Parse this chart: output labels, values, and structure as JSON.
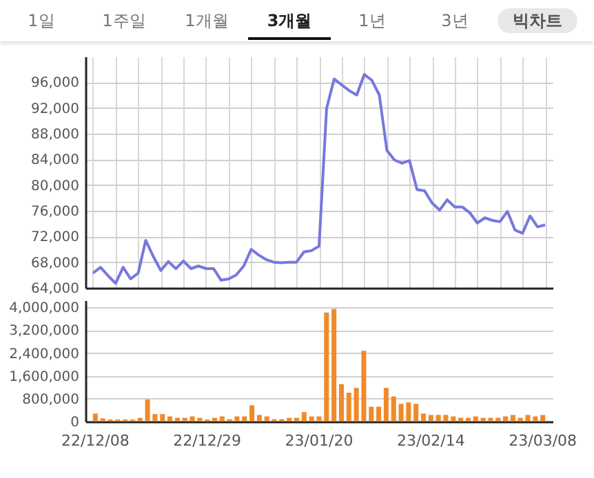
{
  "chart_data": [
    {
      "type": "line",
      "annotations": [
        "1일",
        "1주일",
        "1개월",
        "3개월",
        "1년",
        "3년",
        "빅차트"
      ],
      "categories": [
        null,
        null,
        null,
        null,
        null,
        null,
        null,
        null,
        null,
        null,
        null,
        null,
        null,
        null,
        null,
        null,
        null,
        null,
        null,
        null,
        null,
        null,
        null,
        null,
        null,
        null,
        null,
        null,
        null,
        null,
        null,
        null,
        null,
        null,
        null,
        null,
        null,
        null,
        null,
        null,
        null,
        null,
        null,
        null,
        null,
        null,
        null,
        null,
        null,
        null,
        null,
        null,
        null,
        null,
        null,
        null,
        null,
        null,
        null,
        null,
        null
      ],
      "series": [
        {
          "color": "#7777dd",
          "values": [
            66300,
            67200,
            65900,
            64700,
            67200,
            65400,
            66300,
            71400,
            68900,
            66700,
            68100,
            67000,
            68200,
            67000,
            67400,
            67000,
            67000,
            65200,
            65400,
            66000,
            67400,
            70000,
            69100,
            68400,
            68000,
            67900,
            68000,
            68000,
            69600,
            69800,
            70500,
            91900,
            96500,
            95600,
            94700,
            94000,
            97200,
            96300,
            94000,
            85400,
            83900,
            83400,
            83800,
            79300,
            79100,
            77200,
            76100,
            77700,
            76600,
            76600,
            75700,
            74100,
            74900,
            74500,
            74300,
            75900,
            73000,
            72500,
            75200,
            73500,
            73800
          ]
        }
      ],
      "ylim": [
        64000,
        100000
      ],
      "yticks": [
        {
          "value": 64000,
          "label": "64,000"
        },
        {
          "value": 68000,
          "label": "68,000"
        },
        {
          "value": 72000,
          "label": "72,000"
        },
        {
          "value": 76000,
          "label": "76,000"
        },
        {
          "value": 80000,
          "label": "80,000"
        },
        {
          "value": 84000,
          "label": "84,000"
        },
        {
          "value": 88000,
          "label": "88,000"
        },
        {
          "value": 92000,
          "label": "92,000"
        },
        {
          "value": 96000,
          "label": "96,000"
        }
      ],
      "grid": true,
      "tick_labels": "y"
    },
    {
      "type": "bar",
      "categories": [
        "22/12/08",
        null,
        null,
        null,
        null,
        null,
        null,
        null,
        null,
        null,
        null,
        null,
        null,
        null,
        null,
        "22/12/29",
        null,
        null,
        null,
        null,
        null,
        null,
        null,
        null,
        null,
        null,
        null,
        null,
        null,
        null,
        "23/01/20",
        null,
        null,
        null,
        null,
        null,
        null,
        null,
        null,
        null,
        null,
        null,
        null,
        null,
        null,
        "23/02/14",
        null,
        null,
        null,
        null,
        null,
        null,
        null,
        null,
        null,
        null,
        null,
        null,
        null,
        null,
        "23/03/08"
      ],
      "series": [
        {
          "color": "#ef8a2b",
          "values": [
            280000,
            110000,
            70000,
            70000,
            70000,
            70000,
            130000,
            770000,
            260000,
            260000,
            180000,
            130000,
            130000,
            180000,
            130000,
            70000,
            130000,
            180000,
            80000,
            180000,
            180000,
            570000,
            230000,
            180000,
            80000,
            80000,
            130000,
            130000,
            330000,
            180000,
            180000,
            3820000,
            3950000,
            1310000,
            1010000,
            1180000,
            2480000,
            520000,
            520000,
            1180000,
            880000,
            620000,
            670000,
            620000,
            280000,
            230000,
            230000,
            230000,
            180000,
            130000,
            130000,
            180000,
            130000,
            130000,
            130000,
            180000,
            230000,
            130000,
            230000,
            180000,
            230000
          ]
        }
      ],
      "ylim": [
        0,
        4250000
      ],
      "yticks": [
        0,
        {
          "value": 800000,
          "label": "800,000"
        },
        {
          "value": 1600000,
          "label": "1,600,000"
        },
        {
          "value": 2400000,
          "label": "2,400,000"
        },
        {
          "value": 3200000,
          "label": "3,200,000"
        },
        {
          "value": 4000000,
          "label": "4,000,000"
        }
      ],
      "grid": "y"
    }
  ]
}
